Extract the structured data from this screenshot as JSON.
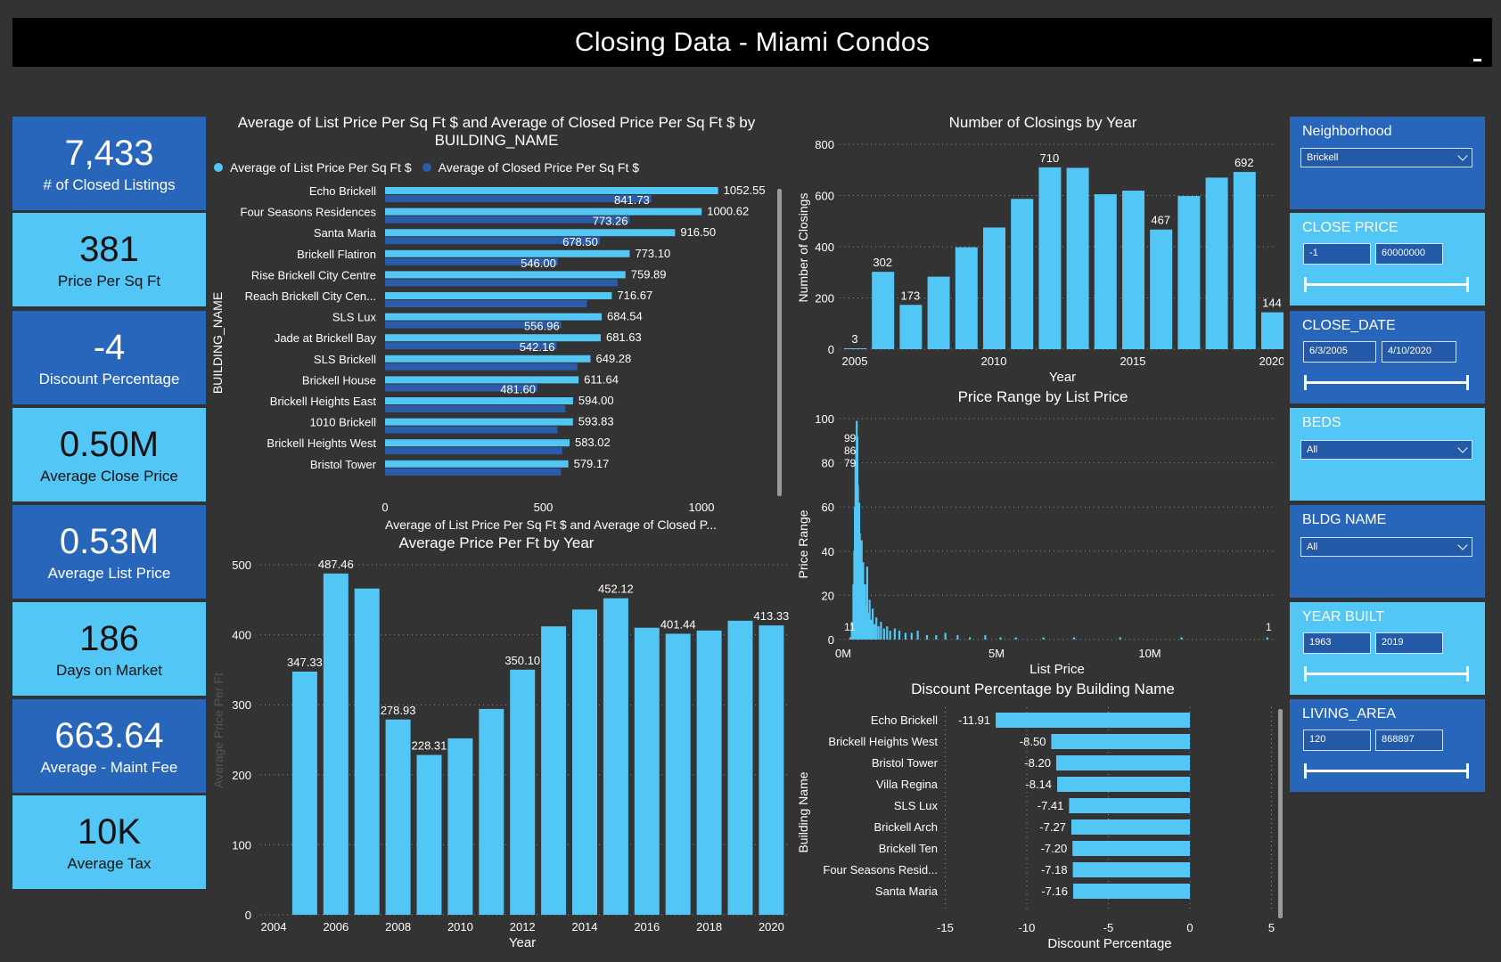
{
  "header": {
    "title": "Closing Data - Miami Condos"
  },
  "kpis": [
    {
      "value": "7,433",
      "label": "# of Closed Listings"
    },
    {
      "value": "381",
      "label": "Price Per Sq Ft"
    },
    {
      "value": "-4",
      "label": "Discount Percentage"
    },
    {
      "value": "0.50M",
      "label": "Average Close Price"
    },
    {
      "value": "0.53M",
      "label": "Average List Price"
    },
    {
      "value": "186",
      "label": "Days on Market"
    },
    {
      "value": "663.64",
      "label": "Average - Maint Fee"
    },
    {
      "value": "10K",
      "label": "Average Tax"
    }
  ],
  "slicers": {
    "neighborhood": {
      "title": "Neighborhood",
      "value": "Brickell"
    },
    "close_price": {
      "title": "CLOSE PRICE",
      "min": "-1",
      "max": "60000000"
    },
    "close_date": {
      "title": "CLOSE_DATE",
      "min": "6/3/2005",
      "max": "4/10/2020"
    },
    "beds": {
      "title": "BEDS",
      "value": "All"
    },
    "bldg_name": {
      "title": "BLDG NAME",
      "value": "All"
    },
    "year_built": {
      "title": "YEAR BUILT",
      "min": "1963",
      "max": "2019"
    },
    "living_area": {
      "title": "LIVING_AREA",
      "min": "120",
      "max": "868897"
    }
  },
  "colors": {
    "light": "#52c6f5",
    "dark": "#2a5caa",
    "bg": "#333333"
  },
  "chart_data": [
    {
      "id": "list-vs-closed",
      "type": "bar",
      "orientation": "horizontal",
      "title": "Average of List Price Per Sq Ft $ and Average of Closed Price Per Sq Ft $ by BUILDING_NAME",
      "title_line1": "Average of List Price Per Sq Ft $ and Average of Closed Price Per Sq Ft $ by",
      "title_line2": "BUILDING_NAME",
      "legend": [
        "Average of List Price Per Sq Ft $",
        "Average of Closed Price Per Sq Ft $"
      ],
      "ylabel": "BUILDING_NAME",
      "xlabel": "Average of List Price Per Sq Ft $ and Average of Closed P...",
      "xlim": [
        0,
        1250
      ],
      "xticks": [
        0,
        500,
        1000
      ],
      "categories": [
        "Echo Brickell",
        "Four Seasons Residences",
        "Santa Maria",
        "Brickell Flatiron",
        "Rise Brickell City Centre",
        "Reach Brickell City Cen...",
        "SLS Lux",
        "Jade at Brickell Bay",
        "SLS Brickell",
        "Brickell House",
        "Brickell Heights East",
        "1010 Brickell",
        "Brickell Heights West",
        "Bristol Tower"
      ],
      "series": [
        {
          "name": "Average of List Price Per Sq Ft $",
          "values": [
            1052.55,
            1000.62,
            916.5,
            773.1,
            759.89,
            716.67,
            684.54,
            681.63,
            649.28,
            611.64,
            594.0,
            593.83,
            583.02,
            579.17
          ],
          "labels": [
            "1052.55",
            "1000.62",
            "916.50",
            "773.10",
            "759.89",
            "716.67",
            "684.54",
            "681.63",
            "649.28",
            "611.64",
            "594.00",
            "593.83",
            "583.02",
            "579.17"
          ]
        },
        {
          "name": "Average of Closed Price Per Sq Ft $",
          "values": [
            841.73,
            773.26,
            678.5,
            546.0,
            735,
            638,
            556.96,
            542.16,
            608,
            481.6,
            570,
            545,
            560,
            556
          ],
          "labels": [
            "841.73",
            "773.26",
            "678.50",
            "546.00",
            "",
            "",
            "556.96",
            "542.16",
            "",
            "481.60",
            "",
            "",
            "",
            ""
          ]
        }
      ]
    },
    {
      "id": "price-per-ft-year",
      "type": "bar",
      "title": "Average Price Per Ft by Year",
      "xlabel": "Year",
      "ylabel": "Average Price Per Ft",
      "ylim": [
        0,
        500
      ],
      "yticks": [
        0,
        100,
        200,
        300,
        400,
        500
      ],
      "xticks": [
        "2004",
        "2006",
        "2008",
        "2010",
        "2012",
        "2014",
        "2016",
        "2018",
        "2020"
      ],
      "categories": [
        "2005",
        "2006",
        "2007",
        "2008",
        "2009",
        "2010",
        "2011",
        "2012",
        "2013",
        "2014",
        "2015",
        "2016",
        "2017",
        "2018",
        "2019",
        "2020"
      ],
      "values": [
        347.33,
        487.46,
        466,
        278.93,
        228.31,
        252,
        294,
        350.1,
        412,
        436,
        452.12,
        410,
        401.44,
        406,
        420,
        413.33
      ],
      "labels": [
        "347.33",
        "487.46",
        "",
        "278.93",
        "228.31",
        "",
        "",
        "350.10",
        "",
        "",
        "452.12",
        "",
        "401.44",
        "",
        "",
        "413.33"
      ]
    },
    {
      "id": "closings-by-year",
      "type": "bar",
      "title": "Number of Closings by Year",
      "xlabel": "Year",
      "ylabel": "Number of Closings",
      "ylim": [
        0,
        800
      ],
      "yticks": [
        0,
        200,
        400,
        600,
        800
      ],
      "xticks": [
        "2005",
        "2010",
        "2015",
        "2020"
      ],
      "categories": [
        "2005",
        "2006",
        "2007",
        "2008",
        "2009",
        "2010",
        "2011",
        "2012",
        "2013",
        "2014",
        "2015",
        "2016",
        "2017",
        "2018",
        "2019",
        "2020"
      ],
      "values": [
        3,
        302,
        173,
        283,
        398,
        475,
        587,
        710,
        708,
        605,
        619,
        467,
        598,
        670,
        692,
        144
      ],
      "labels": [
        "3",
        "302",
        "173",
        "",
        "",
        "",
        "",
        "710",
        "",
        "",
        "",
        "467",
        "",
        "",
        "692",
        "144"
      ]
    },
    {
      "id": "price-range-list-price",
      "type": "bar",
      "title": "Price Range by List Price",
      "xlabel": "List Price",
      "ylabel": "Price Range",
      "ylim": [
        0,
        100
      ],
      "yticks": [
        0,
        20,
        40,
        60,
        80,
        100
      ],
      "xlim": [
        0,
        14000000
      ],
      "xticks": [
        "0M",
        "5M",
        "10M"
      ],
      "x": [
        200000,
        250000,
        300000,
        330000,
        350000,
        370000,
        390000,
        410000,
        430000,
        450000,
        470000,
        490000,
        510000,
        530000,
        550000,
        570000,
        590000,
        620000,
        650000,
        680000,
        710000,
        750000,
        790000,
        830000,
        880000,
        930000,
        990000,
        1050000,
        1120000,
        1200000,
        1300000,
        1400000,
        1500000,
        1650000,
        1800000,
        2000000,
        2200000,
        2400000,
        2700000,
        3000000,
        3300000,
        3700000,
        4100000,
        4600000,
        5100000,
        5600000,
        6500000,
        7500000,
        9000000,
        11000000,
        13800000
      ],
      "values": [
        1,
        8,
        25,
        40,
        60,
        79,
        86,
        99,
        92,
        70,
        55,
        62,
        48,
        40,
        30,
        45,
        28,
        35,
        20,
        25,
        15,
        33,
        12,
        18,
        9,
        14,
        7,
        10,
        6,
        8,
        5,
        6,
        4,
        5,
        4,
        3,
        3,
        4,
        2,
        2,
        3,
        2,
        1,
        2,
        1,
        1,
        1,
        1,
        1,
        1,
        1
      ],
      "annotations": [
        "99",
        "86",
        "79",
        "1",
        "1",
        "1"
      ]
    },
    {
      "id": "discount-by-building",
      "type": "bar",
      "orientation": "horizontal",
      "title": "Discount Percentage by Building Name",
      "xlabel": "Discount Percentage",
      "ylabel": "Building Name",
      "xlim": [
        -15,
        5
      ],
      "xticks": [
        "-15",
        "-10",
        "-5",
        "0",
        "5"
      ],
      "categories": [
        "Echo Brickell",
        "Brickell Heights West",
        "Bristol Tower",
        "Villa Regina",
        "SLS Lux",
        "Brickell Arch",
        "Brickell Ten",
        "Four Seasons Resid...",
        "Santa Maria"
      ],
      "values": [
        -11.91,
        -8.5,
        -8.2,
        -8.14,
        -7.41,
        -7.27,
        -7.2,
        -7.18,
        -7.16
      ],
      "labels": [
        "-11.91",
        "-8.50",
        "-8.20",
        "-8.14",
        "-7.41",
        "-7.27",
        "-7.20",
        "-7.18",
        "-7.16"
      ]
    }
  ]
}
